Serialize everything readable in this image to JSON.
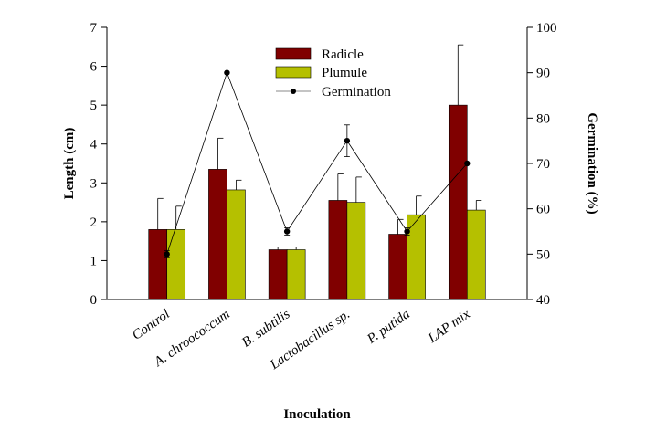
{
  "chart_data": {
    "type": "bar",
    "title": "",
    "xlabel": "Inoculation",
    "ylabel": "Length (cm)",
    "y2label": "Germination (%)",
    "ylim": [
      0,
      7
    ],
    "y2lim": [
      40,
      100
    ],
    "yticks": [
      "0",
      "1",
      "2",
      "3",
      "4",
      "5",
      "6",
      "7"
    ],
    "y2ticks": [
      "40",
      "50",
      "60",
      "70",
      "80",
      "90",
      "100"
    ],
    "categories": [
      "Control",
      "A. chroococcum",
      "B. subtilis",
      "Lactobacillus sp.",
      "P. putida",
      "LAP mix"
    ],
    "series": [
      {
        "name": "Radicle",
        "kind": "bar",
        "color": "#800000",
        "values": [
          1.8,
          3.35,
          1.28,
          2.55,
          1.68,
          5.0
        ],
        "errors": [
          0.8,
          0.8,
          0.07,
          0.68,
          0.38,
          1.55
        ]
      },
      {
        "name": "Plumule",
        "kind": "bar",
        "color": "#b5c000",
        "values": [
          1.8,
          2.82,
          1.28,
          2.5,
          2.18,
          2.3
        ],
        "errors": [
          0.6,
          0.25,
          0.07,
          0.65,
          0.48,
          0.25
        ]
      },
      {
        "name": "Germination",
        "kind": "line",
        "axis": "right",
        "color": "#000000",
        "values": [
          50,
          90,
          55,
          75,
          55,
          70
        ],
        "errors": [
          0.8,
          0,
          0.8,
          3.5,
          0.8,
          0
        ]
      }
    ],
    "legend": {
      "position": "top-center",
      "items": [
        "Radicle",
        "Plumule",
        "Germination"
      ]
    }
  }
}
